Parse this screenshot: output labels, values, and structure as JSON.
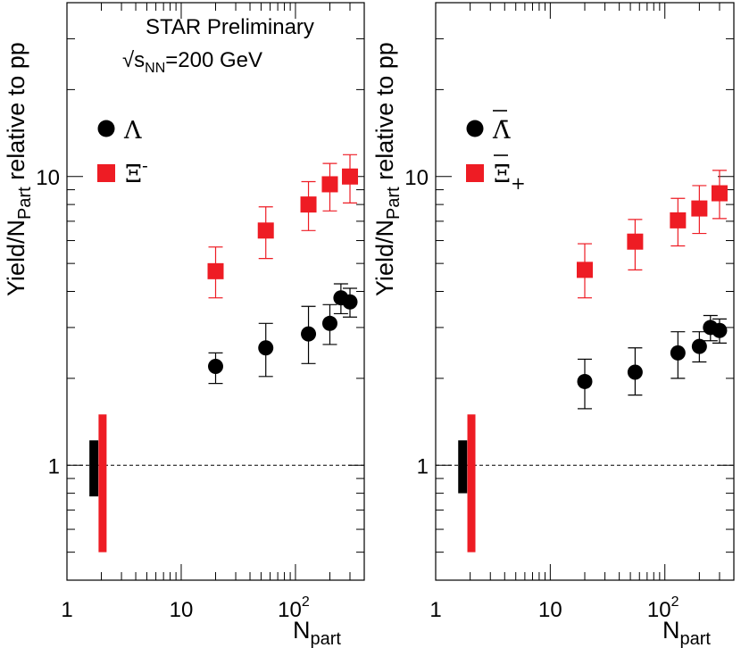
{
  "annotation": {
    "line1": "STAR Preliminary",
    "sqrt": "√s",
    "sub": "NN",
    "energy": "=200 GeV"
  },
  "ylabel": {
    "main": "Yield/N",
    "sub": "Part",
    "tail": " relative to pp"
  },
  "xlabel": {
    "main": "N",
    "sub": "part"
  },
  "ticks": {
    "x": [
      {
        "value": 1,
        "label": "1"
      },
      {
        "value": 10,
        "label": "10"
      },
      {
        "value": 100,
        "base": "10",
        "exp": "2"
      }
    ],
    "y": [
      {
        "value": 1,
        "label": "1"
      },
      {
        "value": 10,
        "label": "10"
      }
    ]
  },
  "colors": {
    "lambda": "#000000",
    "xi": "#ee1c24"
  },
  "chart_data": [
    {
      "type": "scatter",
      "x_scale": "log",
      "y_scale": "log",
      "xlim": [
        1,
        400
      ],
      "ylim": [
        0.4,
        40
      ],
      "reference_line": 1,
      "legend_placement": "upper-left",
      "series": [
        {
          "name": "Λ",
          "marker": "circle",
          "color": "#000000",
          "x": [
            20,
            55,
            130,
            200,
            250,
            300
          ],
          "y": [
            2.2,
            2.55,
            2.85,
            3.1,
            3.8,
            3.68
          ],
          "err_low": [
            0.28,
            0.52,
            0.6,
            0.48,
            0.45,
            0.42
          ],
          "err_high": [
            0.25,
            0.55,
            0.7,
            0.5,
            0.45,
            0.42
          ],
          "norm_uncertainty": [
            0.78,
            1.22
          ]
        },
        {
          "name": "Ξ-",
          "label_base": "Ξ",
          "label_sup": "-",
          "marker": "square",
          "color": "#ee1c24",
          "x": [
            20,
            55,
            130,
            200,
            300
          ],
          "y": [
            4.7,
            6.5,
            8.0,
            9.4,
            10.0
          ],
          "err_low": [
            0.9,
            1.3,
            1.5,
            1.8,
            1.9
          ],
          "err_high": [
            1.0,
            1.35,
            1.6,
            1.7,
            1.9
          ],
          "norm_uncertainty": [
            0.5,
            1.5
          ]
        }
      ]
    },
    {
      "type": "scatter",
      "x_scale": "log",
      "y_scale": "log",
      "xlim": [
        1,
        400
      ],
      "ylim": [
        0.4,
        40
      ],
      "reference_line": 1,
      "legend_placement": "upper-left",
      "series": [
        {
          "name": "Λ̄",
          "marker": "circle",
          "color": "#000000",
          "x": [
            20,
            55,
            130,
            200,
            250,
            300
          ],
          "y": [
            1.95,
            2.1,
            2.45,
            2.58,
            3.0,
            2.93
          ],
          "err_low": [
            0.38,
            0.35,
            0.45,
            0.3,
            0.3,
            0.28
          ],
          "err_high": [
            0.38,
            0.45,
            0.45,
            0.32,
            0.3,
            0.28
          ],
          "norm_uncertainty": [
            0.8,
            1.22
          ]
        },
        {
          "name": "Ξ̄+",
          "label_base": "Ξ",
          "label_sup": "+",
          "marker": "square",
          "color": "#ee1c24",
          "x": [
            20,
            55,
            130,
            200,
            300
          ],
          "y": [
            4.75,
            5.95,
            7.05,
            7.75,
            8.75
          ],
          "err_low": [
            0.95,
            1.2,
            1.3,
            1.4,
            1.6
          ],
          "err_high": [
            1.1,
            1.15,
            1.35,
            1.55,
            1.75
          ],
          "norm_uncertainty": [
            0.5,
            1.5
          ]
        }
      ]
    }
  ]
}
